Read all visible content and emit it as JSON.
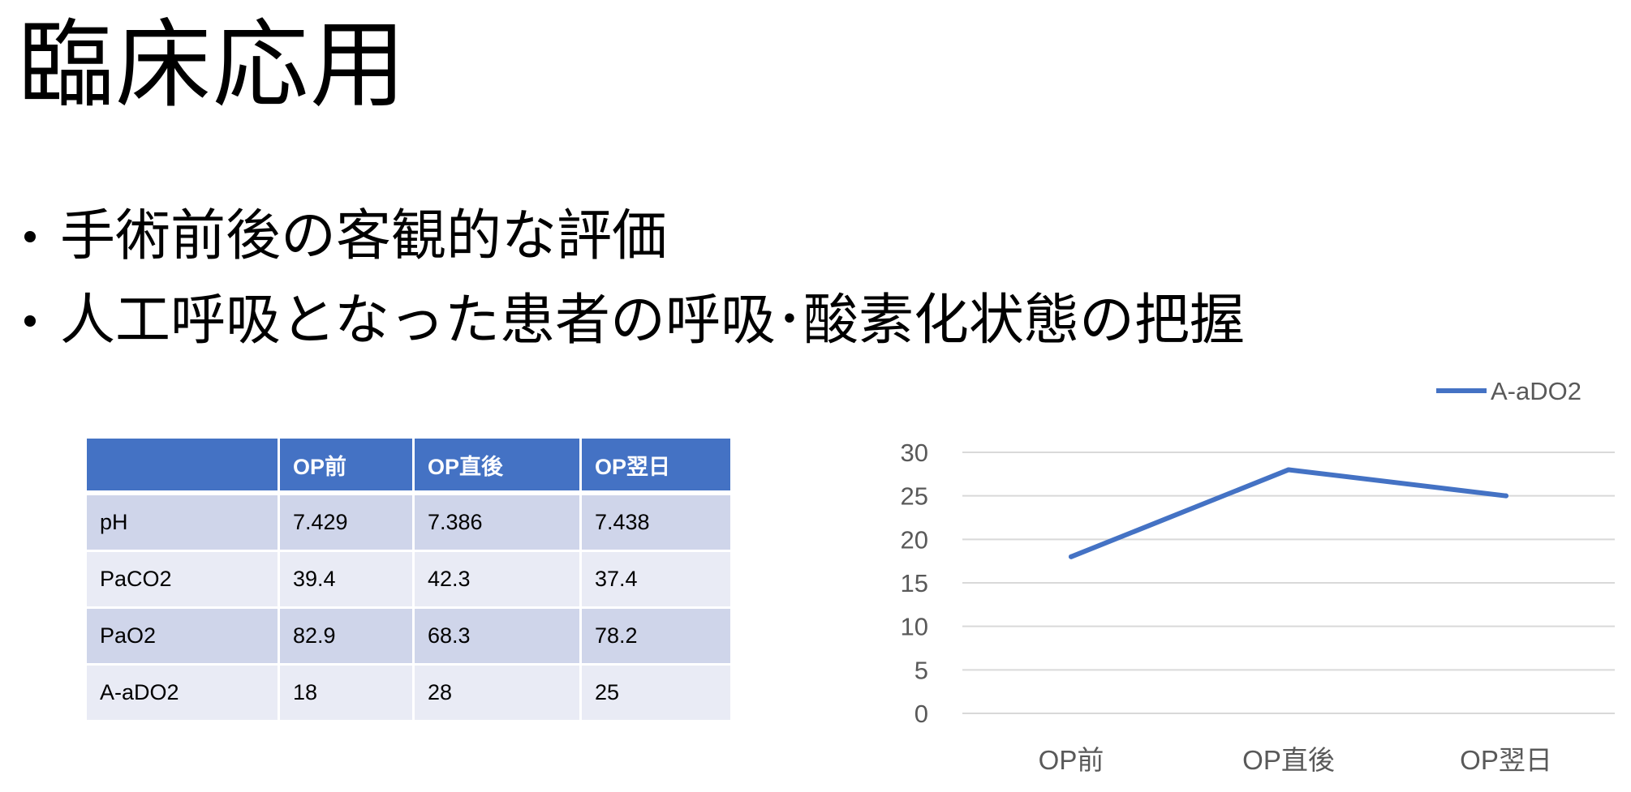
{
  "slide": {
    "title": "臨床応用",
    "bullets": [
      "手術前後の客観的な評価",
      "人工呼吸となった患者の呼吸･酸素化状態の把握"
    ]
  },
  "table": {
    "headers": [
      "",
      "OP前",
      "OP直後",
      "OP翌日"
    ],
    "rows": [
      [
        "pH",
        "7.429",
        "7.386",
        "7.438"
      ],
      [
        "PaCO2",
        "39.4",
        "42.3",
        "37.4"
      ],
      [
        "PaO2",
        "82.9",
        "68.3",
        "78.2"
      ],
      [
        "A-aDO2",
        "18",
        "28",
        "25"
      ]
    ],
    "colors": {
      "header": "#4472c4",
      "row_dark": "#cfd5ea",
      "row_light": "#e9ebf5"
    }
  },
  "chart_data": {
    "type": "line",
    "categories": [
      "OP前",
      "OP直後",
      "OP翌日"
    ],
    "series": [
      {
        "name": "A-aDO2",
        "values": [
          18,
          28,
          25
        ],
        "color": "#4472c4"
      }
    ],
    "ylim": [
      0,
      30
    ],
    "yticks": [
      0,
      5,
      10,
      15,
      20,
      25,
      30
    ],
    "grid": true,
    "legend": "top-right"
  }
}
